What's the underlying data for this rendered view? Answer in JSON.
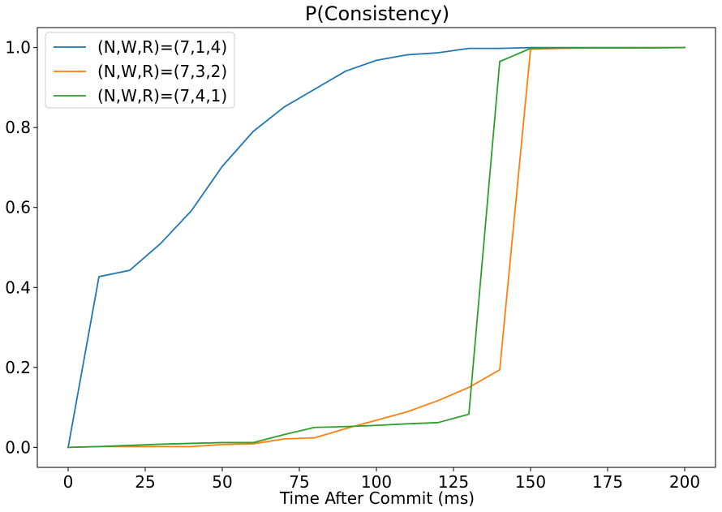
{
  "chart_data": {
    "type": "line",
    "title": "P(Consistency)",
    "xlabel": "Time After Commit (ms)",
    "ylabel": "",
    "xlim": [
      -10,
      210
    ],
    "ylim": [
      -0.05,
      1.05
    ],
    "xticks": [
      0,
      25,
      50,
      75,
      100,
      125,
      150,
      175,
      200
    ],
    "yticks": [
      0.0,
      0.2,
      0.4,
      0.6,
      0.8,
      1.0
    ],
    "xtick_labels": [
      "0",
      "25",
      "50",
      "75",
      "100",
      "125",
      "150",
      "175",
      "200"
    ],
    "ytick_labels": [
      "0.0",
      "0.2",
      "0.4",
      "0.6",
      "0.8",
      "1.0"
    ],
    "grid": false,
    "legend_position": "top-left",
    "x": [
      0,
      10,
      20,
      30,
      40,
      50,
      60,
      70,
      80,
      90,
      100,
      110,
      120,
      130,
      140,
      150,
      160,
      170,
      180,
      190,
      200
    ],
    "series": [
      {
        "name": "(N,W,R)=(7,1,4)",
        "color": "#1f77b4",
        "values": [
          0.0,
          0.427,
          0.443,
          0.51,
          0.592,
          0.703,
          0.79,
          0.851,
          0.896,
          0.941,
          0.968,
          0.982,
          0.987,
          0.998,
          0.998,
          1.0,
          1.0,
          1.0,
          1.0,
          1.0,
          1.0
        ]
      },
      {
        "name": "(N,W,R)=(7,3,2)",
        "color": "#ff7f0e",
        "values": [
          0.0,
          0.002,
          0.002,
          0.002,
          0.002,
          0.007,
          0.009,
          0.021,
          0.024,
          0.047,
          0.068,
          0.089,
          0.117,
          0.15,
          0.194,
          0.996,
          0.998,
          0.999,
          0.999,
          1.0,
          1.0
        ]
      },
      {
        "name": "(N,W,R)=(7,4,1)",
        "color": "#2ca02c",
        "values": [
          0.0,
          0.002,
          0.005,
          0.008,
          0.01,
          0.012,
          0.012,
          0.032,
          0.05,
          0.052,
          0.055,
          0.059,
          0.062,
          0.083,
          0.965,
          0.998,
          0.999,
          0.999,
          0.999,
          0.999,
          1.0
        ]
      }
    ]
  }
}
